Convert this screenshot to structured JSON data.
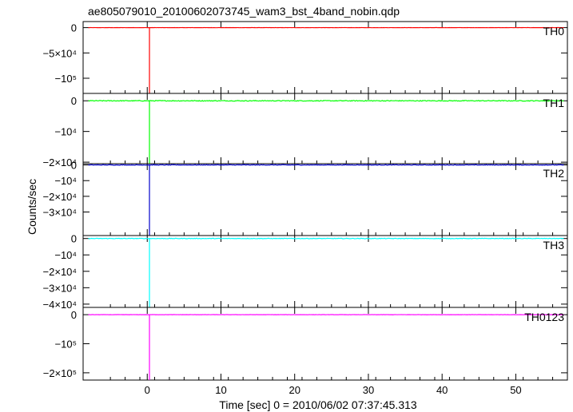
{
  "chart_data": {
    "type": "line",
    "title": "ae805079010_20100602073745_wam3_bst_4band_nobin.qdp",
    "xlabel": "Time [sec] 0 = 2010/06/02 07:37:45.313",
    "ylabel": "Counts/sec",
    "xlim": [
      -8.7,
      57.0
    ],
    "xticks": [
      {
        "value": 0,
        "label": "0"
      },
      {
        "value": 10,
        "label": "10"
      },
      {
        "value": 20,
        "label": "20"
      },
      {
        "value": 30,
        "label": "30"
      },
      {
        "value": 40,
        "label": "40"
      },
      {
        "value": 50,
        "label": "50"
      }
    ],
    "x_start": -8.0,
    "x_end": 56.5,
    "spike_x": 0.3,
    "panels": [
      {
        "name": "TH0",
        "color": "#ff0000",
        "ylim": [
          -130000,
          12000
        ],
        "baseline": 0,
        "spike_min": -130000,
        "noise": 150,
        "yticks": [
          {
            "value": 0,
            "label": "0"
          },
          {
            "value": -50000,
            "label": "−5×10⁴"
          },
          {
            "value": -100000,
            "label": "−10⁵"
          }
        ]
      },
      {
        "name": "TH1",
        "color": "#00ff00",
        "ylim": [
          -20500,
          2400
        ],
        "baseline": 0,
        "spike_min": -20500,
        "noise": 120,
        "yticks": [
          {
            "value": 0,
            "label": "0"
          },
          {
            "value": -10000,
            "label": "−10⁴"
          },
          {
            "value": -20000,
            "label": "−2×10⁴"
          }
        ]
      },
      {
        "name": "TH2",
        "color": "#0000cc",
        "ylim": [
          -45000,
          800
        ],
        "baseline": 0,
        "spike_min": -45000,
        "noise": 150,
        "yticks": [
          {
            "value": 0,
            "label": "0"
          },
          {
            "value": -10000,
            "label": "−10⁴"
          },
          {
            "value": -20000,
            "label": "−2×10⁴"
          },
          {
            "value": -30000,
            "label": "−3×10⁴"
          }
        ]
      },
      {
        "name": "TH3",
        "color": "#00ffff",
        "ylim": [
          -42000,
          1800
        ],
        "baseline": 0,
        "spike_min": -42000,
        "noise": 150,
        "yticks": [
          {
            "value": 0,
            "label": "0"
          },
          {
            "value": -10000,
            "label": "−10⁴"
          },
          {
            "value": -20000,
            "label": "−2×10⁴"
          },
          {
            "value": -30000,
            "label": "−3×10⁴"
          },
          {
            "value": -40000,
            "label": "−4×10⁴"
          }
        ]
      },
      {
        "name": "TH0123",
        "color": "#ff00ff",
        "ylim": [
          -225000,
          25000
        ],
        "baseline": 0,
        "spike_min": -225000,
        "noise": 400,
        "yticks": [
          {
            "value": 0,
            "label": "0"
          },
          {
            "value": -100000,
            "label": "−10⁵"
          },
          {
            "value": -200000,
            "label": "−2×10⁵"
          }
        ]
      }
    ]
  }
}
